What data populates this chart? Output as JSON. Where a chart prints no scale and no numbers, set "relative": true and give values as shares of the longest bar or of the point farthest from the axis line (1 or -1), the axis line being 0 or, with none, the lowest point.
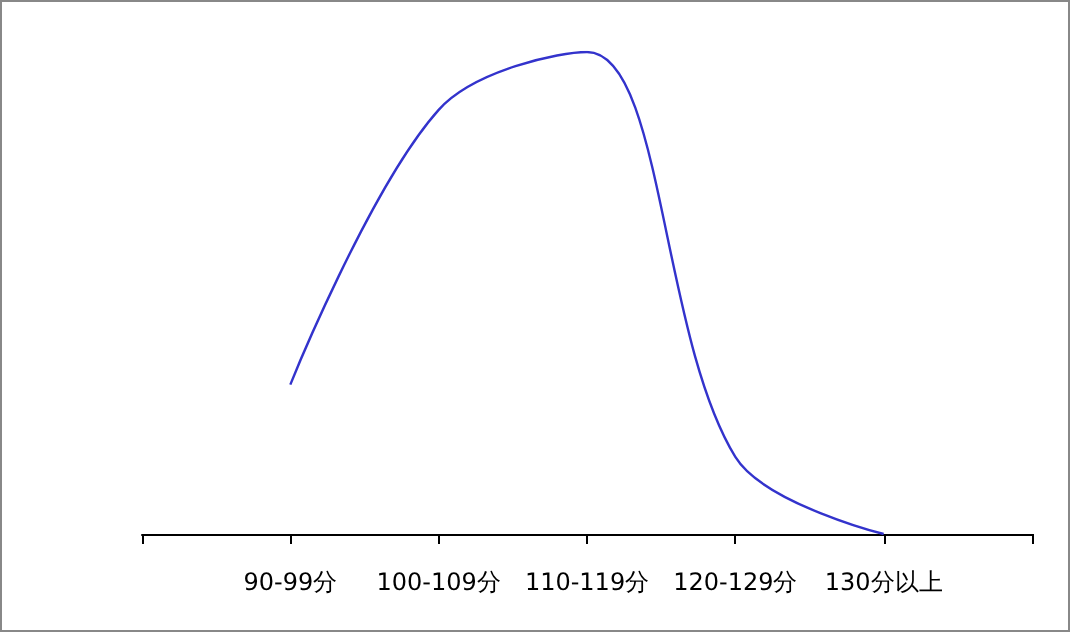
{
  "chart_data": {
    "type": "line",
    "relative": true,
    "categories": [
      null,
      "90-99分",
      "100-109分",
      "110-119分",
      "120-129分",
      "130分以上",
      null
    ],
    "series": [
      {
        "color": "#3333cc",
        "values": [
          null,
          0.31,
          0.88,
          1,
          0.16,
          0,
          null
        ]
      }
    ],
    "marker": "none",
    "line_style": "solid"
  }
}
